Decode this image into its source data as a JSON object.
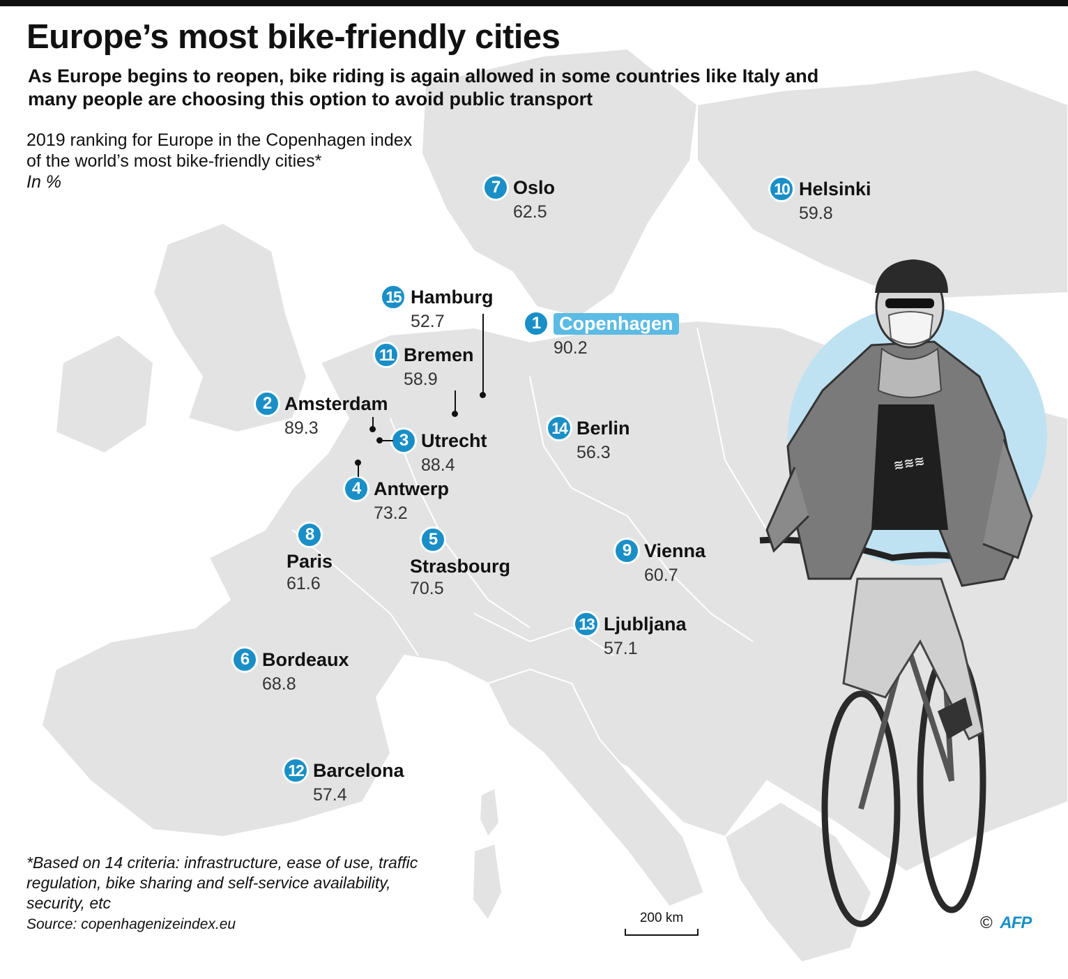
{
  "header": {
    "title": "Europe’s most bike-friendly cities",
    "subtitle": "As Europe begins to reopen, bike riding is again allowed in some countries like Italy and many people are choosing this option to avoid public transport"
  },
  "description": {
    "line1": "2019 ranking for Europe in the Copenhagen index",
    "line2": "of the world’s most bike-friendly cities*",
    "unit": "In %"
  },
  "cities": [
    {
      "rank": "1",
      "name": "Copenhagen",
      "score": "90.2"
    },
    {
      "rank": "2",
      "name": "Amsterdam",
      "score": "89.3"
    },
    {
      "rank": "3",
      "name": "Utrecht",
      "score": "88.4"
    },
    {
      "rank": "4",
      "name": "Antwerp",
      "score": "73.2"
    },
    {
      "rank": "5",
      "name": "Strasbourg",
      "score": "70.5"
    },
    {
      "rank": "6",
      "name": "Bordeaux",
      "score": "68.8"
    },
    {
      "rank": "7",
      "name": "Oslo",
      "score": "62.5"
    },
    {
      "rank": "8",
      "name": "Paris",
      "score": "61.6"
    },
    {
      "rank": "9",
      "name": "Vienna",
      "score": "60.7"
    },
    {
      "rank": "10",
      "name": "Helsinki",
      "score": "59.8"
    },
    {
      "rank": "11",
      "name": "Bremen",
      "score": "58.9"
    },
    {
      "rank": "12",
      "name": "Barcelona",
      "score": "57.4"
    },
    {
      "rank": "13",
      "name": "Ljubljana",
      "score": "57.1"
    },
    {
      "rank": "14",
      "name": "Berlin",
      "score": "56.3"
    },
    {
      "rank": "15",
      "name": "Hamburg",
      "score": "52.7"
    }
  ],
  "footnote": "*Based on 14 criteria: infrastructure, ease  of use, traffic regulation, bike sharing and self-service availability, security, etc",
  "source": "Source: copenhagenizeindex.eu",
  "scale": "200 km",
  "credit": {
    "symbol": "©",
    "logo": "AFP"
  },
  "colors": {
    "accent": "#1a8fc7",
    "highlight": "#5bbbe4",
    "land": "#e3e3e3",
    "photo_circle": "#bfe2f2"
  },
  "icons": [
    "map-of-europe",
    "cyclist-photo",
    "rank-badge"
  ]
}
